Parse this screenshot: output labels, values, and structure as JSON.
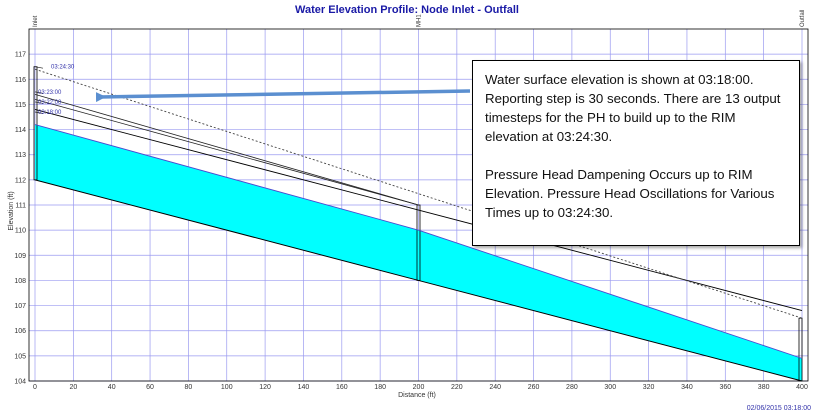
{
  "chart_data": {
    "type": "line",
    "title": "Water Elevation Profile:  Node Inlet - Outfall",
    "xlabel": "Distance (ft)",
    "ylabel": "Elevation (ft)",
    "xlim": [
      0,
      400
    ],
    "ylim": [
      104,
      118
    ],
    "xticks": [
      0,
      20,
      40,
      60,
      80,
      100,
      120,
      140,
      160,
      180,
      200,
      220,
      240,
      260,
      280,
      300,
      320,
      340,
      360,
      380,
      400
    ],
    "yticks": [
      104,
      105,
      106,
      107,
      108,
      109,
      110,
      111,
      112,
      113,
      114,
      115,
      116,
      117
    ],
    "grid": true,
    "nodes": [
      {
        "name": "Inlet",
        "x": 0,
        "invert": 112.0,
        "rim": 116.5
      },
      {
        "name": "MH1",
        "x": 200,
        "invert": 108.0,
        "rim": 111.0
      },
      {
        "name": "Outfall",
        "x": 400,
        "invert": 104.0,
        "rim": 106.5
      }
    ],
    "conduits": [
      {
        "from": "Inlet",
        "to": "MH1",
        "invert_start": 112.0,
        "invert_end": 108.0,
        "crown_start": 114.8,
        "crown_end": 110.8
      },
      {
        "from": "MH1",
        "to": "Outfall",
        "invert_start": 108.0,
        "invert_end": 104.0,
        "crown_start": 110.8,
        "crown_end": 106.8
      }
    ],
    "series": [
      {
        "name": "Water surface",
        "x": [
          0,
          200,
          400
        ],
        "y": [
          114.2,
          110.0,
          104.9
        ]
      },
      {
        "name": "HGL 03:24:30",
        "x": [
          0,
          400
        ],
        "y": [
          116.4,
          106.5
        ]
      },
      {
        "name": "HGL 03:23:00",
        "x": [
          0,
          200
        ],
        "y": [
          115.4,
          111.0
        ]
      },
      {
        "name": "HGL 03:22:00",
        "x": [
          0,
          200
        ],
        "y": [
          115.2,
          111.0
        ]
      }
    ],
    "time_labels": [
      {
        "text": "03:24:30",
        "y": 116.5
      },
      {
        "text": "03:23:00",
        "y": 115.5
      },
      {
        "text": "03:22:00",
        "y": 115.1
      },
      {
        "text": "03:18:00",
        "y": 114.7
      }
    ],
    "footer": "02/06/2015 03:18:00"
  },
  "annotation": {
    "paragraph_1": "Water surface elevation is shown at 03:18:00. Reporting step is 30 seconds.  There are 13 output timesteps for the PH to build up to the RIM elevation at 03:24:30.",
    "paragraph_2": "Pressure Head Dampening Occurs up to RIM Elevation. Pressure Head Oscillations for Various Times up to 03:24:30."
  },
  "colors": {
    "water": "#00ffff",
    "grid": "#9a9af0",
    "arrow": "#5b8fd0",
    "hgl": "#4a4ad0"
  }
}
